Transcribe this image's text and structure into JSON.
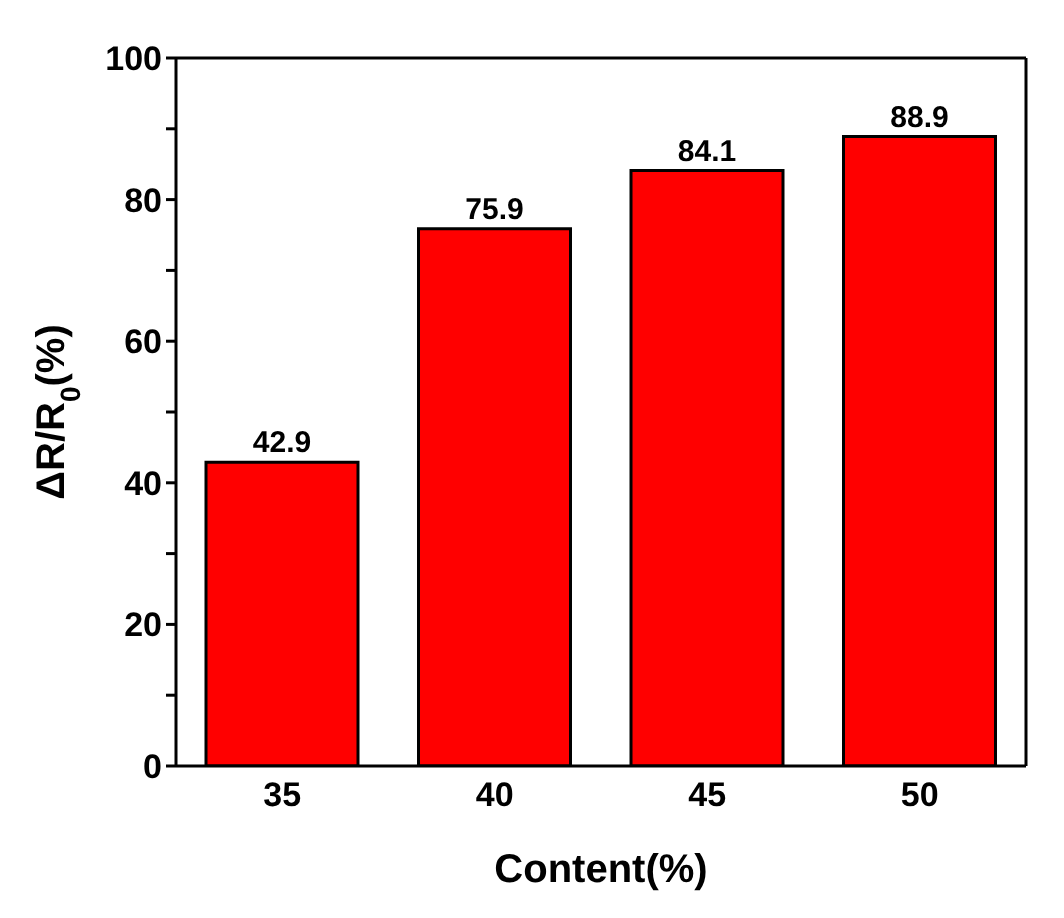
{
  "chart_data": {
    "type": "bar",
    "xlabel": "Content(%)",
    "ylabel": "ΔR/R$_{0}$(%)",
    "categories": [
      "35",
      "40",
      "45",
      "50"
    ],
    "values": [
      42.9,
      75.9,
      84.1,
      88.9
    ],
    "color": "#ff0000",
    "ylim": [
      0,
      100
    ],
    "yticks": [
      0,
      {
        "value": 10,
        "label": null
      },
      20,
      {
        "value": 30,
        "label": null
      },
      40,
      {
        "value": 50,
        "label": null
      },
      60,
      {
        "value": 70,
        "label": null
      },
      80,
      {
        "value": 90,
        "label": null
      },
      100
    ],
    "data_labels": true,
    "grid": false,
    "legend": false
  }
}
